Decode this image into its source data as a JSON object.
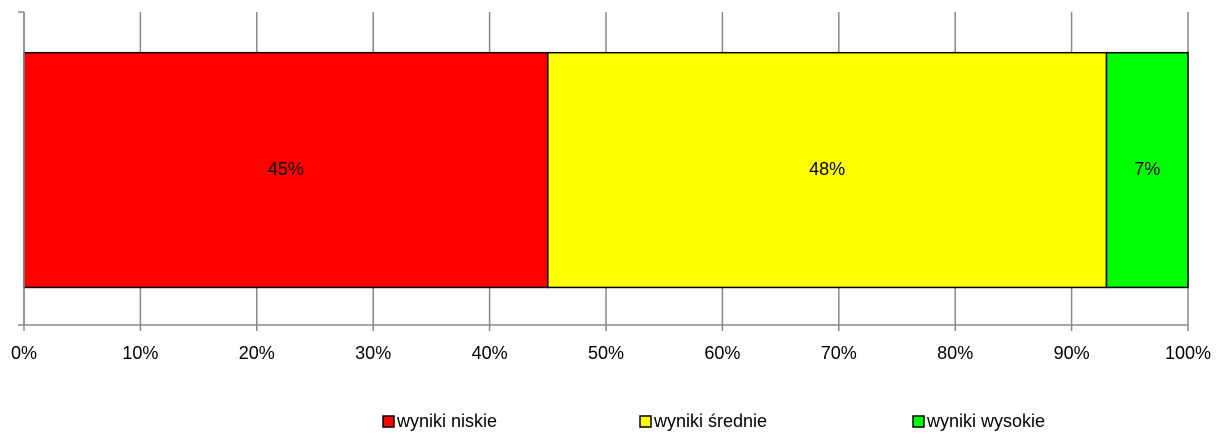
{
  "chart_data": {
    "type": "stacked_barh",
    "categories": [
      null
    ],
    "series": [
      {
        "name": "wyniki niskie",
        "color": "#ff0000",
        "values": [
          45
        ],
        "value_labels": [
          "45%"
        ]
      },
      {
        "name": "wyniki średnie",
        "color": "#ffff00",
        "values": [
          48
        ],
        "value_labels": [
          "48%"
        ]
      },
      {
        "name": "wyniki wysokie",
        "color": "#00ff00",
        "values": [
          7
        ],
        "value_labels": [
          "7%"
        ]
      }
    ],
    "xlim": [
      0,
      100
    ],
    "xticks": [
      {
        "value": 0,
        "label": "0%"
      },
      {
        "value": 10,
        "label": "10%"
      },
      {
        "value": 20,
        "label": "20%"
      },
      {
        "value": 30,
        "label": "30%"
      },
      {
        "value": 40,
        "label": "40%"
      },
      {
        "value": 50,
        "label": "50%"
      },
      {
        "value": 60,
        "label": "60%"
      },
      {
        "value": 70,
        "label": "70%"
      },
      {
        "value": 80,
        "label": "80%"
      },
      {
        "value": 90,
        "label": "90%"
      },
      {
        "value": 100,
        "label": "100%"
      }
    ],
    "grid": true,
    "legend": "bottom"
  }
}
